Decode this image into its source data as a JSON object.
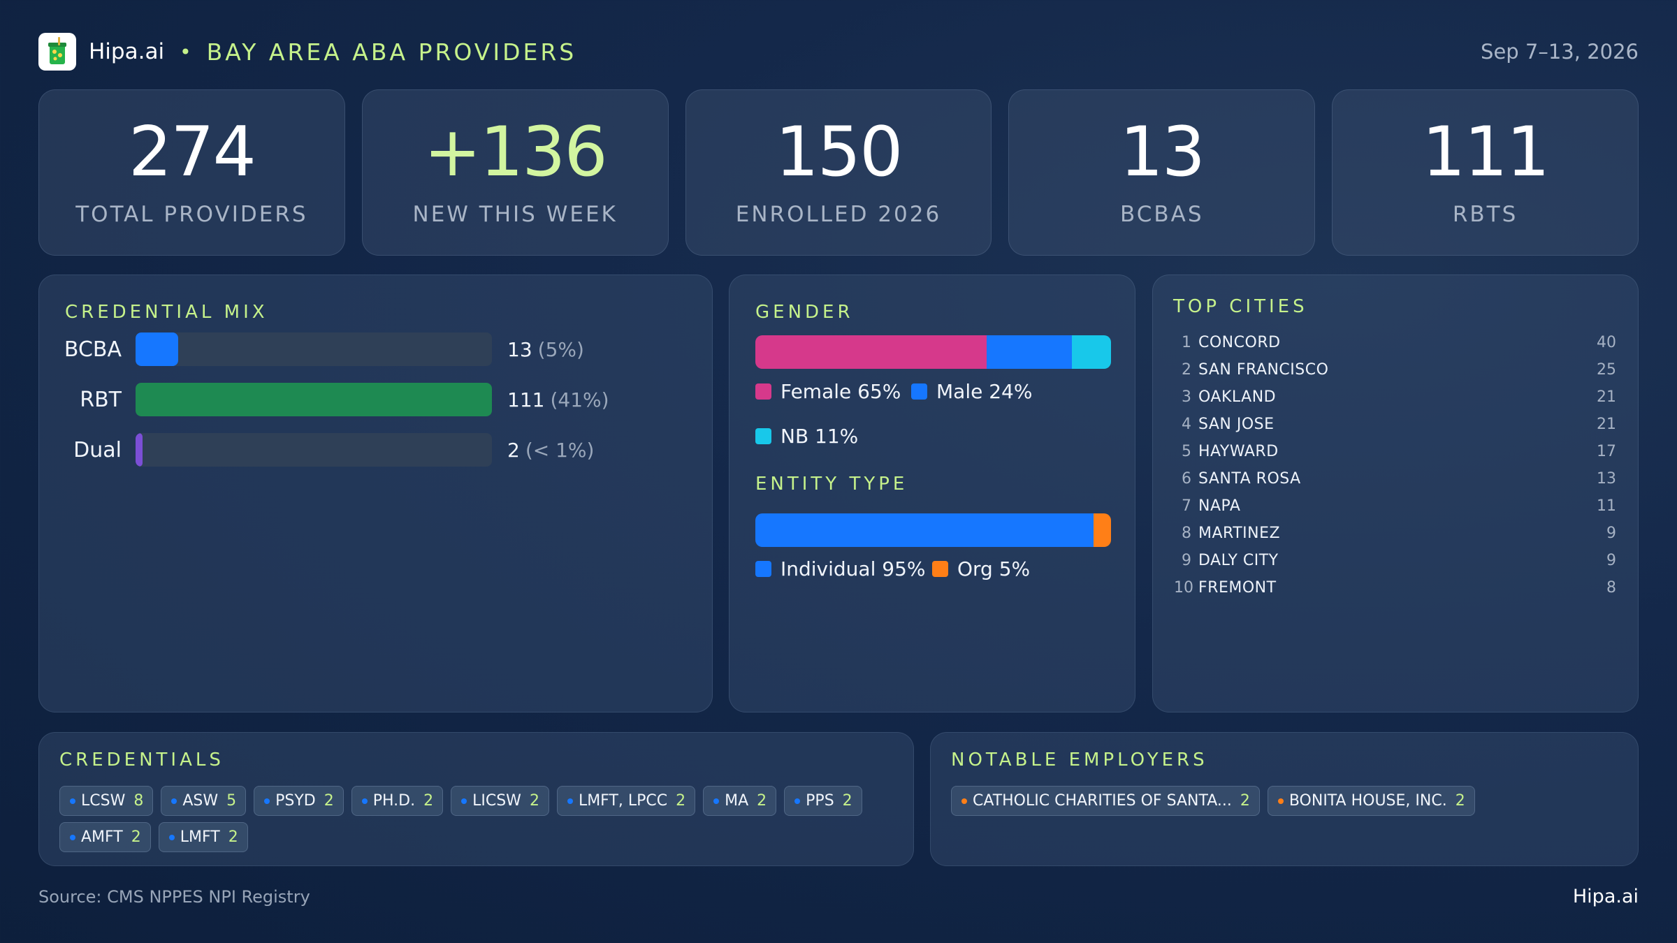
{
  "header": {
    "brand": "Hipa.ai",
    "separator": "•",
    "title": "BAY AREA ABA PROVIDERS",
    "date_range": "Sep 7–13, 2026"
  },
  "kpis": [
    {
      "value": "274",
      "label": "TOTAL PROVIDERS"
    },
    {
      "value": "+136",
      "label": "NEW THIS WEEK"
    },
    {
      "value": "150",
      "label": "ENROLLED 2026"
    },
    {
      "value": "13",
      "label": "BCBAS"
    },
    {
      "value": "111",
      "label": "RBTS"
    }
  ],
  "credential_mix": {
    "title": "CREDENTIAL MIX",
    "rows": [
      {
        "label": "BCBA",
        "value": "13",
        "pct": "(5%)",
        "fraction": 0.12,
        "color": "#1677ff"
      },
      {
        "label": "RBT",
        "value": "111",
        "pct": "(41%)",
        "fraction": 1.0,
        "color": "#1e8a52"
      },
      {
        "label": "Dual",
        "value": "2",
        "pct": "(< 1%)",
        "fraction": 0.02,
        "color": "#7b4fd6"
      }
    ]
  },
  "gender": {
    "title": "GENDER",
    "segments": [
      {
        "label": "Female 65%",
        "share": 65,
        "color": "#d6398b"
      },
      {
        "label": "Male 24%",
        "share": 24,
        "color": "#1677ff"
      },
      {
        "label": "NB 11%",
        "share": 11,
        "color": "#18c8ea"
      }
    ]
  },
  "entity_type": {
    "title": "ENTITY TYPE",
    "segments": [
      {
        "label": "Individual 95%",
        "share": 95,
        "color": "#1677ff"
      },
      {
        "label": "Org 5%",
        "share": 5,
        "color": "#ff7f17"
      }
    ]
  },
  "top_cities": {
    "title": "TOP CITIES",
    "items": [
      {
        "rank": "1",
        "name": "CONCORD",
        "count": "40"
      },
      {
        "rank": "2",
        "name": "SAN FRANCISCO",
        "count": "25"
      },
      {
        "rank": "3",
        "name": "OAKLAND",
        "count": "21"
      },
      {
        "rank": "4",
        "name": "SAN JOSE",
        "count": "21"
      },
      {
        "rank": "5",
        "name": "HAYWARD",
        "count": "17"
      },
      {
        "rank": "6",
        "name": "SANTA ROSA",
        "count": "13"
      },
      {
        "rank": "7",
        "name": "NAPA",
        "count": "11"
      },
      {
        "rank": "8",
        "name": "MARTINEZ",
        "count": "9"
      },
      {
        "rank": "9",
        "name": "DALY CITY",
        "count": "9"
      },
      {
        "rank": "10",
        "name": "FREMONT",
        "count": "8"
      }
    ]
  },
  "credentials": {
    "title": "CREDENTIALS",
    "dot_color": "#1677ff",
    "items": [
      {
        "label": "LCSW",
        "count": "8"
      },
      {
        "label": "ASW",
        "count": "5"
      },
      {
        "label": "PSYD",
        "count": "2"
      },
      {
        "label": "PH.D.",
        "count": "2"
      },
      {
        "label": "LICSW",
        "count": "2"
      },
      {
        "label": "LMFT, LPCC",
        "count": "2"
      },
      {
        "label": "MA",
        "count": "2"
      },
      {
        "label": "PPS",
        "count": "2"
      },
      {
        "label": "AMFT",
        "count": "2"
      },
      {
        "label": "LMFT",
        "count": "2"
      }
    ]
  },
  "employers": {
    "title": "NOTABLE EMPLOYERS",
    "dot_color": "#ff7f17",
    "items": [
      {
        "label": "CATHOLIC CHARITIES OF SANTA...",
        "count": "2"
      },
      {
        "label": "BONITA HOUSE, INC.",
        "count": "2"
      }
    ]
  },
  "footer": {
    "source": "Source: CMS NPPES NPI Registry",
    "brand": "Hipa.ai"
  }
}
